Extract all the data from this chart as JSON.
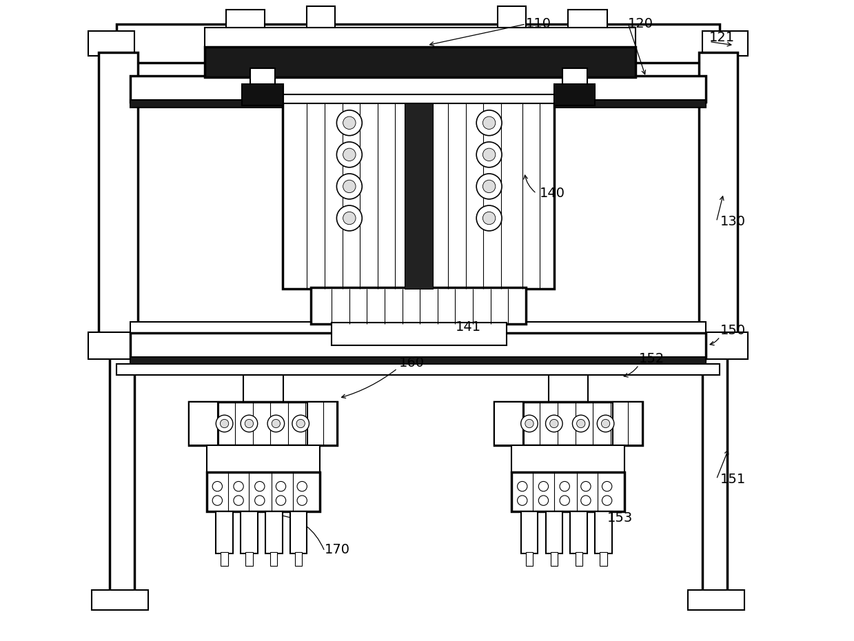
{
  "bg_color": "#ffffff",
  "line_color": "#000000",
  "fig_width": 12.39,
  "fig_height": 9.3
}
